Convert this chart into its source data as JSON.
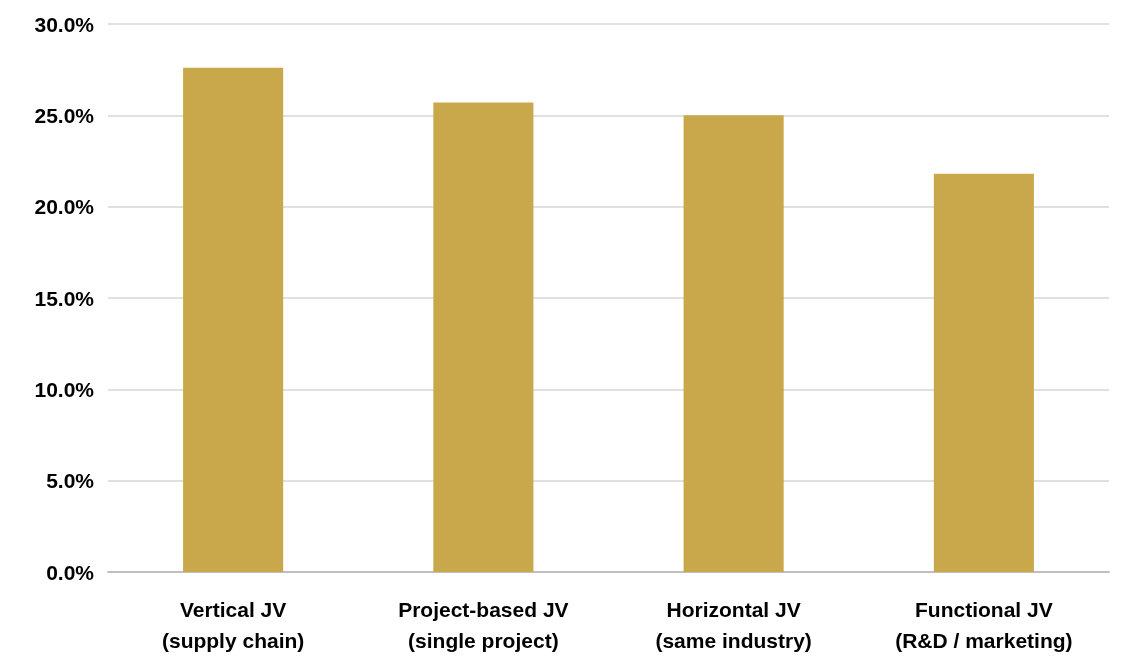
{
  "chart_data": {
    "type": "bar",
    "categories": [
      "Vertical JV\n(supply chain)",
      "Project-based JV\n(single project)",
      "Horizontal JV\n(same industry)",
      "Functional JV\n(R&D / marketing)"
    ],
    "values": [
      27.6,
      25.7,
      25.0,
      21.8
    ],
    "color": "#c9a84c",
    "ylim": [
      0,
      30
    ],
    "yticks": [
      {
        "value": 0,
        "label": "0.0%"
      },
      {
        "value": 5,
        "label": "5.0%"
      },
      {
        "value": 10,
        "label": "10.0%"
      },
      {
        "value": 15,
        "label": "15.0%"
      },
      {
        "value": 20,
        "label": "20.0%"
      },
      {
        "value": 25,
        "label": "25.0%"
      },
      {
        "value": 30,
        "label": "30.0%"
      }
    ],
    "grid": "y"
  }
}
